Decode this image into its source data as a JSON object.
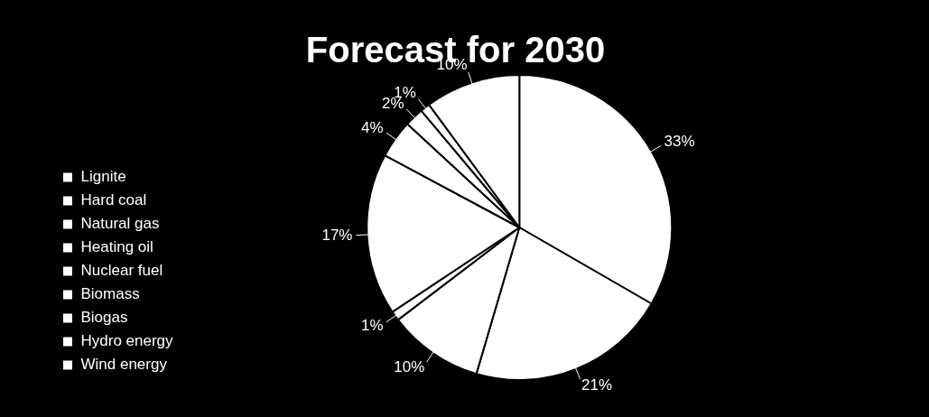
{
  "chart_data": {
    "type": "pie",
    "title": "Forecast for 2030",
    "categories": [
      "Lignite",
      "Hard coal",
      "Natural gas",
      "Heating oil",
      "Nuclear fuel",
      "Biomass",
      "Biogas",
      "Hydro energy",
      "Wind energy"
    ],
    "values": [
      33,
      21,
      10,
      1,
      17,
      4,
      2,
      1,
      10
    ],
    "value_labels": [
      "33%",
      "21%",
      "10%",
      "1%",
      "17%",
      "4%",
      "2%",
      "1%",
      "10%"
    ],
    "colors": [
      "#ffffff",
      "#ffffff",
      "#ffffff",
      "#ffffff",
      "#ffffff",
      "#ffffff",
      "#ffffff",
      "#ffffff",
      "#ffffff"
    ],
    "legend": "left",
    "data_labels": true
  }
}
